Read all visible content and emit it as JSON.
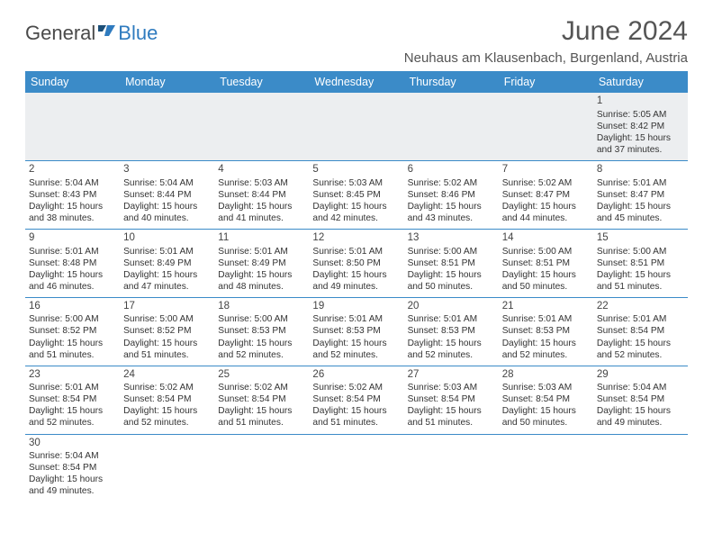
{
  "colors": {
    "header_bg": "#3b8bc8",
    "header_text": "#ffffff",
    "border": "#3b8bc8",
    "body_text": "#333333",
    "title_text": "#555555",
    "logo_gray": "#4a4a4a",
    "logo_blue": "#2f7bbf",
    "blank_row_bg": "#eceef0"
  },
  "typography": {
    "month_title_fontsize_pt": 22,
    "location_fontsize_pt": 11,
    "header_fontsize_pt": 9.5,
    "cell_fontsize_pt": 7.7,
    "daynum_fontsize_pt": 8.5,
    "font_family": "Arial"
  },
  "logo": {
    "text_general": "General",
    "text_blue": "Blue"
  },
  "title": "June 2024",
  "location": "Neuhaus am Klausenbach, Burgenland, Austria",
  "weekdays": [
    "Sunday",
    "Monday",
    "Tuesday",
    "Wednesday",
    "Thursday",
    "Friday",
    "Saturday"
  ],
  "weeks": [
    [
      null,
      null,
      null,
      null,
      null,
      null,
      {
        "n": "1",
        "sr": "Sunrise: 5:05 AM",
        "ss": "Sunset: 8:42 PM",
        "d1": "Daylight: 15 hours",
        "d2": "and 37 minutes."
      }
    ],
    [
      {
        "n": "2",
        "sr": "Sunrise: 5:04 AM",
        "ss": "Sunset: 8:43 PM",
        "d1": "Daylight: 15 hours",
        "d2": "and 38 minutes."
      },
      {
        "n": "3",
        "sr": "Sunrise: 5:04 AM",
        "ss": "Sunset: 8:44 PM",
        "d1": "Daylight: 15 hours",
        "d2": "and 40 minutes."
      },
      {
        "n": "4",
        "sr": "Sunrise: 5:03 AM",
        "ss": "Sunset: 8:44 PM",
        "d1": "Daylight: 15 hours",
        "d2": "and 41 minutes."
      },
      {
        "n": "5",
        "sr": "Sunrise: 5:03 AM",
        "ss": "Sunset: 8:45 PM",
        "d1": "Daylight: 15 hours",
        "d2": "and 42 minutes."
      },
      {
        "n": "6",
        "sr": "Sunrise: 5:02 AM",
        "ss": "Sunset: 8:46 PM",
        "d1": "Daylight: 15 hours",
        "d2": "and 43 minutes."
      },
      {
        "n": "7",
        "sr": "Sunrise: 5:02 AM",
        "ss": "Sunset: 8:47 PM",
        "d1": "Daylight: 15 hours",
        "d2": "and 44 minutes."
      },
      {
        "n": "8",
        "sr": "Sunrise: 5:01 AM",
        "ss": "Sunset: 8:47 PM",
        "d1": "Daylight: 15 hours",
        "d2": "and 45 minutes."
      }
    ],
    [
      {
        "n": "9",
        "sr": "Sunrise: 5:01 AM",
        "ss": "Sunset: 8:48 PM",
        "d1": "Daylight: 15 hours",
        "d2": "and 46 minutes."
      },
      {
        "n": "10",
        "sr": "Sunrise: 5:01 AM",
        "ss": "Sunset: 8:49 PM",
        "d1": "Daylight: 15 hours",
        "d2": "and 47 minutes."
      },
      {
        "n": "11",
        "sr": "Sunrise: 5:01 AM",
        "ss": "Sunset: 8:49 PM",
        "d1": "Daylight: 15 hours",
        "d2": "and 48 minutes."
      },
      {
        "n": "12",
        "sr": "Sunrise: 5:01 AM",
        "ss": "Sunset: 8:50 PM",
        "d1": "Daylight: 15 hours",
        "d2": "and 49 minutes."
      },
      {
        "n": "13",
        "sr": "Sunrise: 5:00 AM",
        "ss": "Sunset: 8:51 PM",
        "d1": "Daylight: 15 hours",
        "d2": "and 50 minutes."
      },
      {
        "n": "14",
        "sr": "Sunrise: 5:00 AM",
        "ss": "Sunset: 8:51 PM",
        "d1": "Daylight: 15 hours",
        "d2": "and 50 minutes."
      },
      {
        "n": "15",
        "sr": "Sunrise: 5:00 AM",
        "ss": "Sunset: 8:51 PM",
        "d1": "Daylight: 15 hours",
        "d2": "and 51 minutes."
      }
    ],
    [
      {
        "n": "16",
        "sr": "Sunrise: 5:00 AM",
        "ss": "Sunset: 8:52 PM",
        "d1": "Daylight: 15 hours",
        "d2": "and 51 minutes."
      },
      {
        "n": "17",
        "sr": "Sunrise: 5:00 AM",
        "ss": "Sunset: 8:52 PM",
        "d1": "Daylight: 15 hours",
        "d2": "and 51 minutes."
      },
      {
        "n": "18",
        "sr": "Sunrise: 5:00 AM",
        "ss": "Sunset: 8:53 PM",
        "d1": "Daylight: 15 hours",
        "d2": "and 52 minutes."
      },
      {
        "n": "19",
        "sr": "Sunrise: 5:01 AM",
        "ss": "Sunset: 8:53 PM",
        "d1": "Daylight: 15 hours",
        "d2": "and 52 minutes."
      },
      {
        "n": "20",
        "sr": "Sunrise: 5:01 AM",
        "ss": "Sunset: 8:53 PM",
        "d1": "Daylight: 15 hours",
        "d2": "and 52 minutes."
      },
      {
        "n": "21",
        "sr": "Sunrise: 5:01 AM",
        "ss": "Sunset: 8:53 PM",
        "d1": "Daylight: 15 hours",
        "d2": "and 52 minutes."
      },
      {
        "n": "22",
        "sr": "Sunrise: 5:01 AM",
        "ss": "Sunset: 8:54 PM",
        "d1": "Daylight: 15 hours",
        "d2": "and 52 minutes."
      }
    ],
    [
      {
        "n": "23",
        "sr": "Sunrise: 5:01 AM",
        "ss": "Sunset: 8:54 PM",
        "d1": "Daylight: 15 hours",
        "d2": "and 52 minutes."
      },
      {
        "n": "24",
        "sr": "Sunrise: 5:02 AM",
        "ss": "Sunset: 8:54 PM",
        "d1": "Daylight: 15 hours",
        "d2": "and 52 minutes."
      },
      {
        "n": "25",
        "sr": "Sunrise: 5:02 AM",
        "ss": "Sunset: 8:54 PM",
        "d1": "Daylight: 15 hours",
        "d2": "and 51 minutes."
      },
      {
        "n": "26",
        "sr": "Sunrise: 5:02 AM",
        "ss": "Sunset: 8:54 PM",
        "d1": "Daylight: 15 hours",
        "d2": "and 51 minutes."
      },
      {
        "n": "27",
        "sr": "Sunrise: 5:03 AM",
        "ss": "Sunset: 8:54 PM",
        "d1": "Daylight: 15 hours",
        "d2": "and 51 minutes."
      },
      {
        "n": "28",
        "sr": "Sunrise: 5:03 AM",
        "ss": "Sunset: 8:54 PM",
        "d1": "Daylight: 15 hours",
        "d2": "and 50 minutes."
      },
      {
        "n": "29",
        "sr": "Sunrise: 5:04 AM",
        "ss": "Sunset: 8:54 PM",
        "d1": "Daylight: 15 hours",
        "d2": "and 49 minutes."
      }
    ],
    [
      {
        "n": "30",
        "sr": "Sunrise: 5:04 AM",
        "ss": "Sunset: 8:54 PM",
        "d1": "Daylight: 15 hours",
        "d2": "and 49 minutes."
      },
      null,
      null,
      null,
      null,
      null,
      null
    ]
  ]
}
